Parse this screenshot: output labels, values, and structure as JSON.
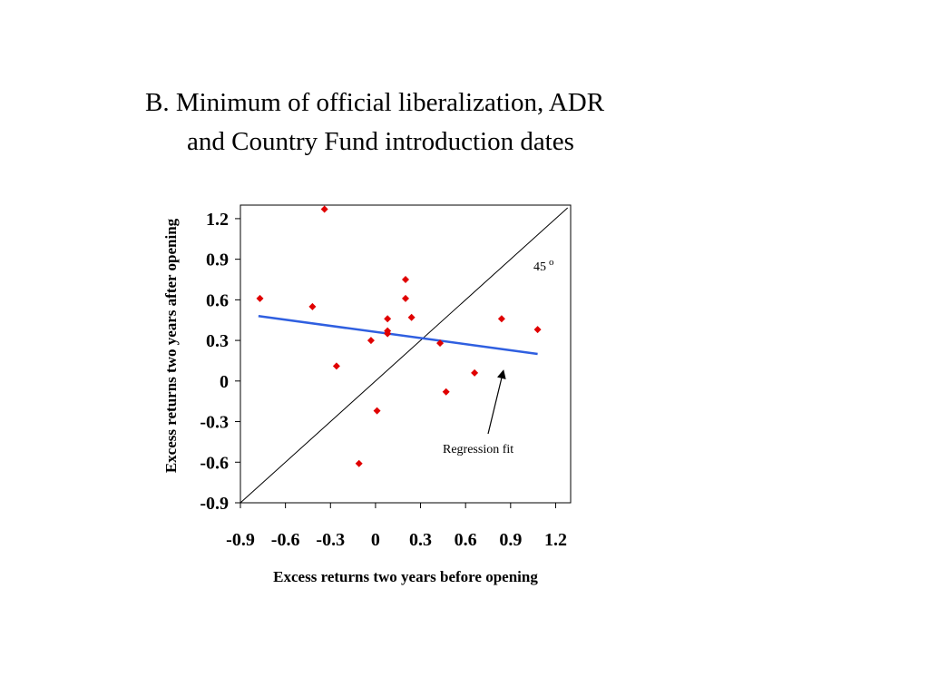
{
  "title": {
    "line1": "B. Minimum of official liberalization, ADR",
    "line2": "and Country Fund introduction dates"
  },
  "chart_data": {
    "type": "scatter",
    "xlabel": "Excess returns two years before opening",
    "ylabel": "Excess returns two years after opening",
    "xlim": [
      -0.9,
      1.3
    ],
    "ylim": [
      -0.9,
      1.3
    ],
    "xticks": [
      "-0.9",
      "-0.6",
      "-0.3",
      "0",
      "0.3",
      "0.6",
      "0.9",
      "1.2"
    ],
    "yticks": [
      "1.2",
      "0.9",
      "0.6",
      "0.3",
      "0",
      "-0.3",
      "-0.6",
      "-0.9"
    ],
    "marker_color": "#e00000",
    "points": [
      {
        "x": -0.77,
        "y": 0.61
      },
      {
        "x": -0.34,
        "y": 1.27
      },
      {
        "x": -0.42,
        "y": 0.55
      },
      {
        "x": -0.26,
        "y": 0.11
      },
      {
        "x": -0.11,
        "y": -0.61
      },
      {
        "x": -0.03,
        "y": 0.3
      },
      {
        "x": 0.01,
        "y": -0.22
      },
      {
        "x": 0.08,
        "y": 0.46
      },
      {
        "x": 0.08,
        "y": 0.37
      },
      {
        "x": 0.08,
        "y": 0.35
      },
      {
        "x": 0.2,
        "y": 0.75
      },
      {
        "x": 0.2,
        "y": 0.61
      },
      {
        "x": 0.24,
        "y": 0.47
      },
      {
        "x": 0.43,
        "y": 0.28
      },
      {
        "x": 0.47,
        "y": -0.08
      },
      {
        "x": 0.66,
        "y": 0.06
      },
      {
        "x": 0.84,
        "y": 0.46
      },
      {
        "x": 1.08,
        "y": 0.38
      }
    ],
    "regression": {
      "x": [
        -0.78,
        1.08
      ],
      "y": [
        0.48,
        0.2
      ],
      "color": "#2f5fe0"
    },
    "diagonal": {
      "x": [
        -0.9,
        1.28
      ],
      "y": [
        -0.9,
        1.28
      ],
      "color": "#000000"
    },
    "annotations": {
      "diagonal_label": "45",
      "degree_symbol": "o",
      "regression_label": "Regression fit"
    },
    "grid": false,
    "legend": "none"
  }
}
